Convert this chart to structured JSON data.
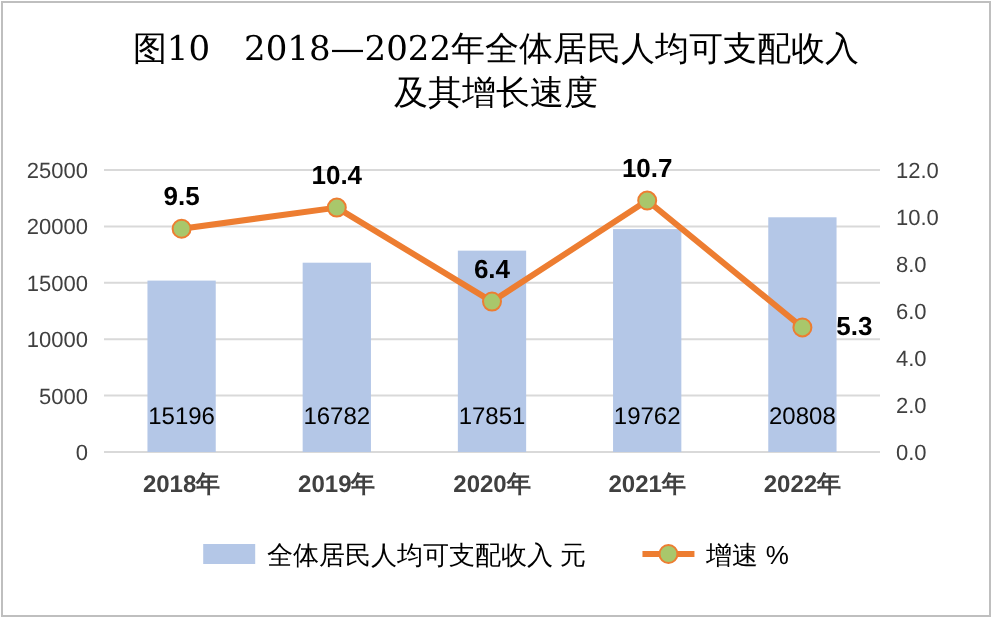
{
  "chart_data": {
    "type": "bar",
    "title": "图10　2018—2022年全体居民人均可支配收入及其增长速度",
    "categories": [
      "2018年",
      "2019年",
      "2020年",
      "2021年",
      "2022年"
    ],
    "series": [
      {
        "name": "全体居民人均可支配收入 元",
        "color": "#b4c7e7",
        "values": [
          15196,
          16782,
          17851,
          19762,
          20808
        ]
      },
      {
        "name": "增速 %",
        "type": "line",
        "axis": "y2",
        "color": "#ed7d31",
        "marker": "circle",
        "values": [
          9.5,
          10.4,
          6.4,
          10.7,
          5.3
        ]
      }
    ],
    "ylim": [
      0,
      25000
    ],
    "yticks": [
      0,
      5000,
      10000,
      15000,
      20000,
      25000
    ],
    "y2lim": [
      0,
      12
    ],
    "y2ticks": [
      {
        "value": 0,
        "label": "0.0"
      },
      {
        "value": 2,
        "label": "2.0"
      },
      {
        "value": 4,
        "label": "4.0"
      },
      {
        "value": 6,
        "label": "6.0"
      },
      {
        "value": 8,
        "label": "8.0"
      },
      {
        "value": 10,
        "label": "10.0"
      },
      {
        "value": 12,
        "label": "12.0"
      }
    ],
    "grid": "y",
    "legend": "bottom",
    "data_labels": true
  }
}
